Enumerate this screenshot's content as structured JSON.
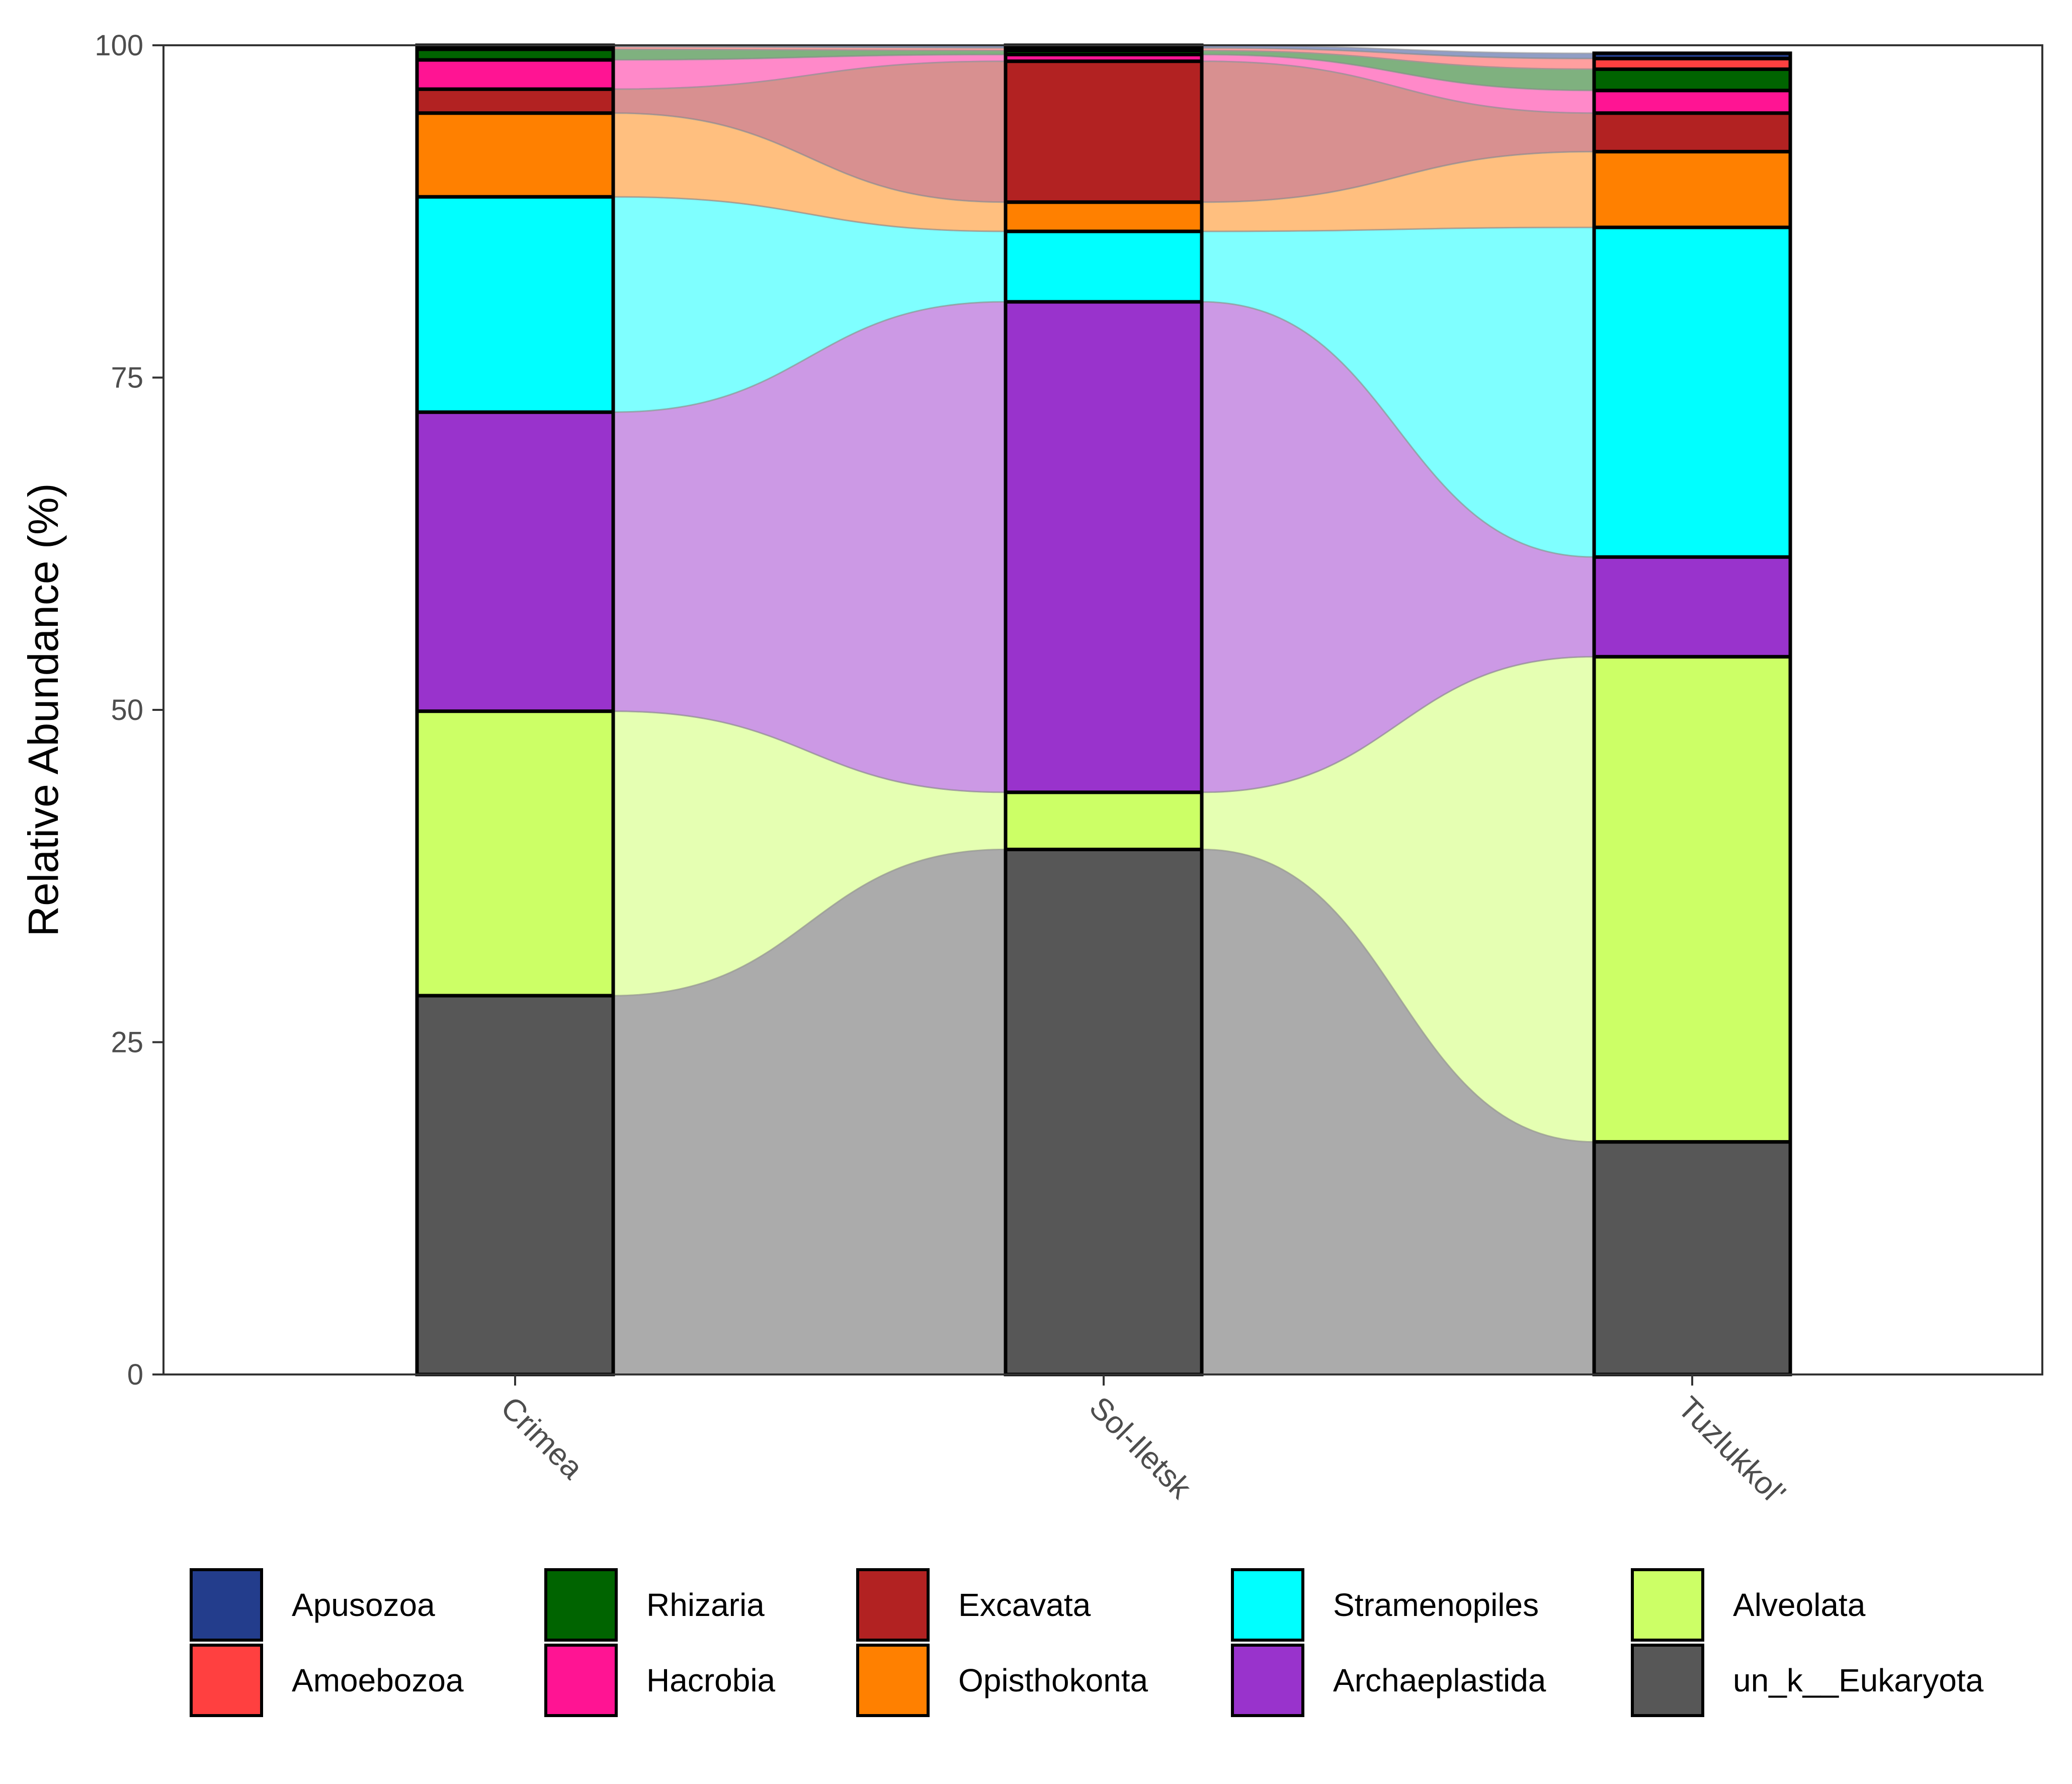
{
  "chart_data": {
    "type": "bar",
    "stacked": true,
    "alluvial_flows": true,
    "ylabel": "Relative Abundance (%)",
    "xlabel": "",
    "ylim": [
      0,
      100
    ],
    "yticks": [
      0,
      25,
      50,
      75,
      100
    ],
    "categories": [
      "Crimea",
      "Sol-Iletsk",
      "Tuzlukkol'"
    ],
    "series": [
      {
        "name": "un_k__Eukaryota",
        "color": "#575757",
        "values": [
          28.5,
          39.5,
          17.5
        ]
      },
      {
        "name": "Alveolata",
        "color": "#CCFF66",
        "values": [
          21.4,
          4.3,
          36.5
        ]
      },
      {
        "name": "Archaeplastida",
        "color": "#9933CC",
        "values": [
          22.5,
          36.9,
          7.5
        ]
      },
      {
        "name": "Stramenopiles",
        "color": "#00FFFF",
        "values": [
          16.2,
          5.3,
          24.8
        ]
      },
      {
        "name": "Opisthokonta",
        "color": "#FF8000",
        "values": [
          6.3,
          2.2,
          5.7
        ]
      },
      {
        "name": "Excavata",
        "color": "#B22222",
        "values": [
          1.8,
          10.6,
          2.9
        ]
      },
      {
        "name": "Hacrobia",
        "color": "#FF1493",
        "values": [
          2.2,
          0.5,
          1.7
        ]
      },
      {
        "name": "Rhizaria",
        "color": "#006400",
        "values": [
          0.8,
          0.3,
          1.6
        ]
      },
      {
        "name": "Amoebozoa",
        "color": "#FF4040",
        "values": [
          0.2,
          0.2,
          0.8
        ]
      },
      {
        "name": "Apusozoa",
        "color": "#233D8C",
        "values": [
          0.1,
          0.2,
          0.4
        ]
      }
    ],
    "legend": {
      "position": "bottom",
      "entries": [
        "Apusozoa",
        "Amoebozoa",
        "Rhizaria",
        "Hacrobia",
        "Excavata",
        "Opisthokonta",
        "Stramenopiles",
        "Archaeplastida",
        "Alveolata",
        "un_k__Eukaryota"
      ]
    }
  }
}
